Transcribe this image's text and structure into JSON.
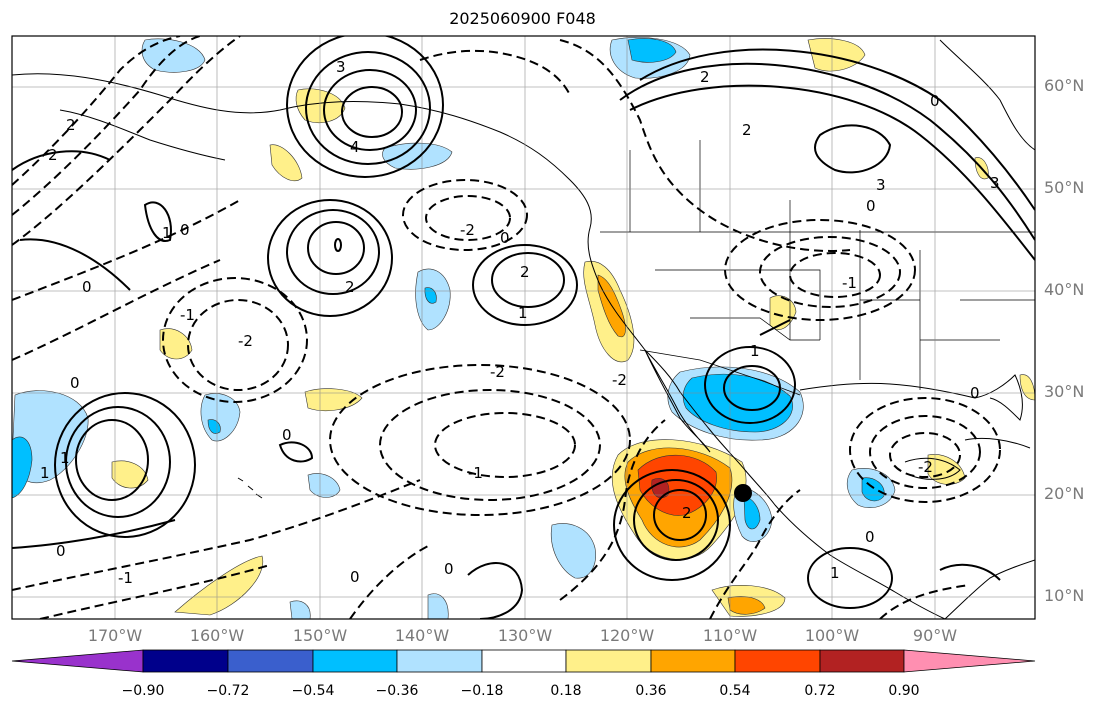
{
  "title": "2025060900 F048",
  "lat_labels": [
    "60°N",
    "50°N",
    "40°N",
    "30°N",
    "20°N",
    "10°N"
  ],
  "lon_labels": [
    "170°W",
    "160°W",
    "150°W",
    "140°W",
    "130°W",
    "120°W",
    "110°W",
    "100°W",
    "90°W"
  ],
  "colorbar": {
    "tick_labels": [
      "−0.90",
      "−0.72",
      "−0.54",
      "−0.36",
      "−0.18",
      "0.18",
      "0.36",
      "0.54",
      "0.72",
      "0.90"
    ],
    "colors": [
      "#9932cc",
      "#00008b",
      "#3a5fcd",
      "#00bfff",
      "#b0e2ff",
      "#ffffff",
      "#fff08a",
      "#ffa500",
      "#ff4500",
      "#b22222",
      "#ff8fb1"
    ]
  },
  "contour_labels": [
    "-2",
    "-1",
    "0",
    "1",
    "2",
    "3",
    "4"
  ],
  "marker": "storm-center-marker"
}
